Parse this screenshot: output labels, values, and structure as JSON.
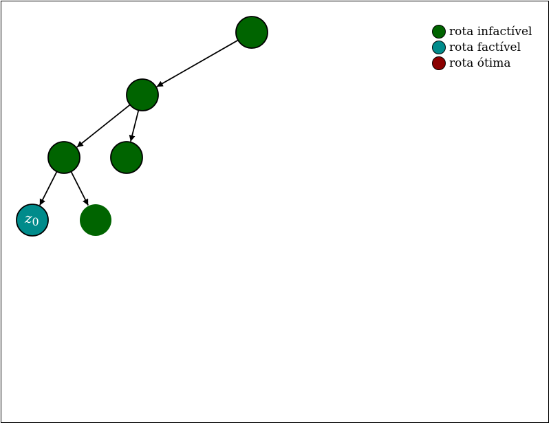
{
  "colors": {
    "infeasible": "#006400",
    "feasible": "#008b8b",
    "optimal": "#8b0000",
    "edge": "#000000"
  },
  "legend": [
    {
      "label": "rota infactível",
      "color_key": "infeasible"
    },
    {
      "label": "rota factível",
      "color_key": "feasible"
    },
    {
      "label": "rota ótima",
      "color_key": "optimal"
    }
  ],
  "tree": {
    "nodes": [
      {
        "id": "n0",
        "status": "infeasible",
        "label": ""
      },
      {
        "id": "n1",
        "status": "infeasible",
        "label": ""
      },
      {
        "id": "n2",
        "status": "infeasible",
        "label": ""
      },
      {
        "id": "n3",
        "status": "infeasible",
        "label": ""
      },
      {
        "id": "n4",
        "status": "feasible",
        "label": "z",
        "label_sub": "0"
      },
      {
        "id": "n5",
        "status": "infeasible",
        "label": "",
        "no_outline": true
      }
    ],
    "edges": [
      {
        "from": "n0",
        "to": "n1"
      },
      {
        "from": "n1",
        "to": "n2"
      },
      {
        "from": "n1",
        "to": "n3"
      },
      {
        "from": "n2",
        "to": "n4"
      },
      {
        "from": "n2",
        "to": "n5"
      }
    ]
  }
}
